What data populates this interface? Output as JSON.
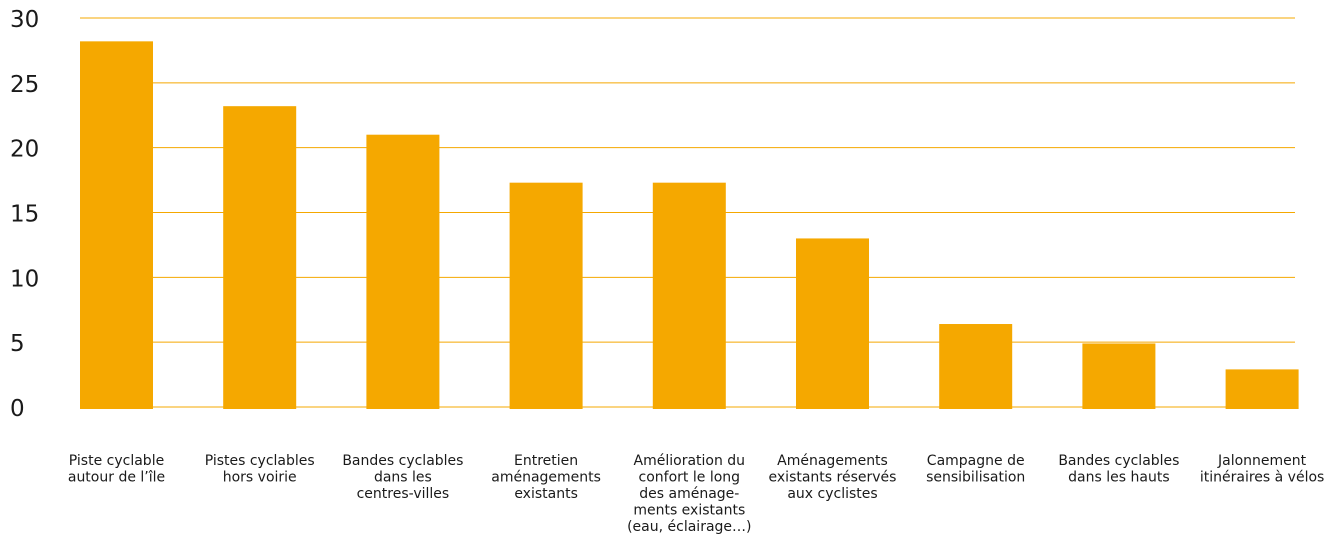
{
  "chart_data": {
    "type": "bar",
    "categories": [
      [
        "Piste cyclable",
        "autour de l’île"
      ],
      [
        "Pistes cyclables",
        "hors voirie"
      ],
      [
        "Bandes cyclables",
        "dans les",
        "centres-villes"
      ],
      [
        "Entretien",
        "aménagements",
        "existants"
      ],
      [
        "Amélioration du",
        "confort le long",
        "des aménage-",
        "ments existants",
        "(eau, éclairage…)"
      ],
      [
        "Aménagements",
        "existants réservés",
        "aux cyclistes"
      ],
      [
        "Campagne de",
        "sensibilisation"
      ],
      [
        "Bandes cyclables",
        "dans les hauts"
      ],
      [
        "Jalonnement",
        "itinéraires à vélos"
      ]
    ],
    "values": [
      28.2,
      23.2,
      21.0,
      17.3,
      17.3,
      13.0,
      6.4,
      4.9,
      2.9
    ],
    "yticks": [
      "0",
      "5",
      "10",
      "15",
      "20",
      "25",
      "30"
    ],
    "ylim": [
      0,
      30
    ],
    "grid": true,
    "colors": {
      "bar": "#F5A800",
      "grid": "#F5A800",
      "text": "#1a1a1a"
    }
  }
}
